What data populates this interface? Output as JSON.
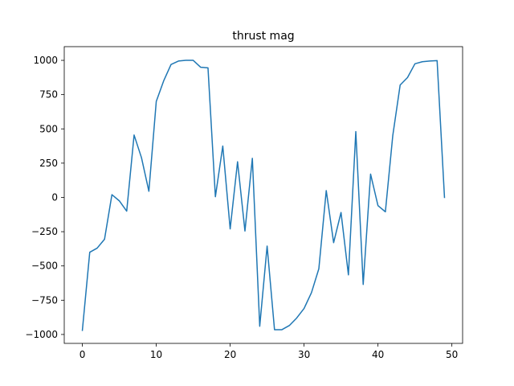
{
  "chart_data": {
    "type": "line",
    "title": "thrust mag",
    "xlabel": "",
    "ylabel": "",
    "xlim": [
      -2.45,
      51.45
    ],
    "ylim": [
      -1065,
      1100
    ],
    "x_ticks": [
      0,
      10,
      20,
      30,
      40,
      50
    ],
    "y_ticks": [
      -1000,
      -750,
      -500,
      -250,
      0,
      250,
      500,
      750,
      1000
    ],
    "grid": false,
    "legend": "none",
    "colors": {
      "line": "#1f77b4",
      "axes": "#000000",
      "background": "#ffffff"
    },
    "series": [
      {
        "x": [
          0,
          1,
          2,
          3,
          4,
          5,
          6,
          7,
          8,
          9,
          10,
          11,
          12,
          13,
          14,
          15,
          16,
          17,
          18,
          19,
          20,
          21,
          22,
          23,
          24,
          25,
          26,
          27,
          28,
          29,
          30,
          31,
          32,
          33,
          34,
          35,
          36,
          37,
          38,
          39,
          40,
          41,
          42,
          43,
          44,
          45,
          46,
          47,
          48,
          49
        ],
        "values": [
          -970,
          -400,
          -370,
          -305,
          20,
          -25,
          -100,
          455,
          290,
          45,
          700,
          850,
          970,
          995,
          1000,
          1000,
          950,
          945,
          5,
          375,
          -230,
          260,
          -245,
          285,
          -940,
          -355,
          -965,
          -965,
          -935,
          -880,
          -810,
          -695,
          -520,
          50,
          -330,
          -110,
          -565,
          480,
          -635,
          170,
          -60,
          -105,
          450,
          820,
          875,
          975,
          990,
          995,
          998,
          0
        ]
      }
    ]
  }
}
